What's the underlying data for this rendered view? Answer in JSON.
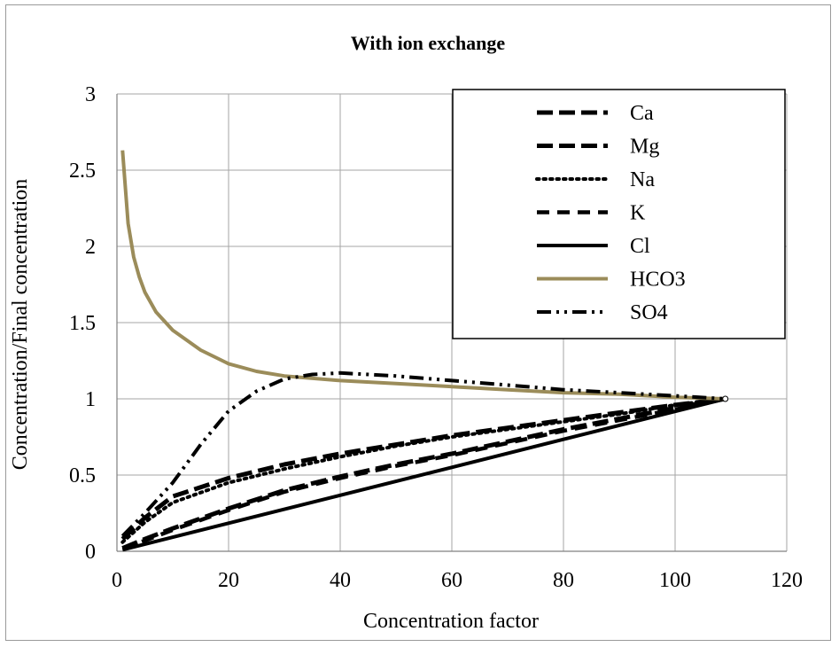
{
  "chart_data": {
    "type": "line",
    "title": "With ion exchange",
    "xlabel": "Concentration factor",
    "ylabel": "Concentration/Final concentration",
    "xlim": [
      0,
      120
    ],
    "ylim": [
      0,
      3
    ],
    "xticks": [
      0,
      20,
      40,
      60,
      80,
      100,
      120
    ],
    "yticks": [
      0,
      0.5,
      1,
      1.5,
      2,
      2.5,
      3
    ],
    "ytick_labels": [
      "0",
      "0.5",
      "1",
      "1.5",
      "2",
      "2.5",
      "3"
    ],
    "grid": true,
    "legend_position": "top-right",
    "series": [
      {
        "name": "Ca",
        "style": "long-dash",
        "color": "#000000",
        "x": [
          1,
          5,
          10,
          20,
          30,
          40,
          50,
          60,
          70,
          80,
          90,
          100,
          109
        ],
        "y": [
          0.08,
          0.22,
          0.36,
          0.48,
          0.57,
          0.64,
          0.7,
          0.76,
          0.81,
          0.86,
          0.91,
          0.96,
          1.0
        ]
      },
      {
        "name": "Mg",
        "style": "long-dash",
        "color": "#000000",
        "x": [
          1,
          5,
          10,
          20,
          30,
          40,
          50,
          60,
          70,
          80,
          90,
          100,
          109
        ],
        "y": [
          0.02,
          0.08,
          0.15,
          0.28,
          0.4,
          0.49,
          0.57,
          0.64,
          0.72,
          0.8,
          0.87,
          0.94,
          1.0
        ]
      },
      {
        "name": "Na",
        "style": "dotted",
        "color": "#000000",
        "x": [
          1,
          5,
          10,
          20,
          30,
          40,
          50,
          60,
          70,
          80,
          90,
          100,
          109
        ],
        "y": [
          0.06,
          0.19,
          0.32,
          0.45,
          0.54,
          0.62,
          0.69,
          0.75,
          0.8,
          0.85,
          0.9,
          0.96,
          1.0
        ]
      },
      {
        "name": "K",
        "style": "dash",
        "color": "#000000",
        "x": [
          1,
          5,
          10,
          20,
          30,
          40,
          50,
          60,
          70,
          80,
          90,
          100,
          109
        ],
        "y": [
          0.02,
          0.07,
          0.14,
          0.27,
          0.39,
          0.48,
          0.56,
          0.63,
          0.71,
          0.79,
          0.86,
          0.93,
          1.0
        ]
      },
      {
        "name": "Cl",
        "style": "solid",
        "color": "#000000",
        "x": [
          1,
          109
        ],
        "y": [
          0.01,
          1.0
        ]
      },
      {
        "name": "HCO3",
        "style": "solid",
        "color": "#9b8c5a",
        "x": [
          1,
          2,
          3,
          4,
          5,
          7,
          10,
          15,
          20,
          25,
          30,
          40,
          50,
          60,
          70,
          80,
          90,
          100,
          109
        ],
        "y": [
          2.63,
          2.15,
          1.93,
          1.8,
          1.7,
          1.57,
          1.45,
          1.32,
          1.23,
          1.18,
          1.15,
          1.12,
          1.1,
          1.08,
          1.06,
          1.04,
          1.03,
          1.01,
          1.0
        ]
      },
      {
        "name": "SO4",
        "style": "dash-dot-dot",
        "color": "#000000",
        "x": [
          1,
          5,
          10,
          15,
          20,
          25,
          30,
          35,
          40,
          50,
          60,
          70,
          80,
          90,
          100,
          109
        ],
        "y": [
          0.1,
          0.25,
          0.45,
          0.7,
          0.92,
          1.05,
          1.13,
          1.16,
          1.17,
          1.15,
          1.12,
          1.09,
          1.06,
          1.04,
          1.02,
          1.0
        ]
      }
    ]
  }
}
